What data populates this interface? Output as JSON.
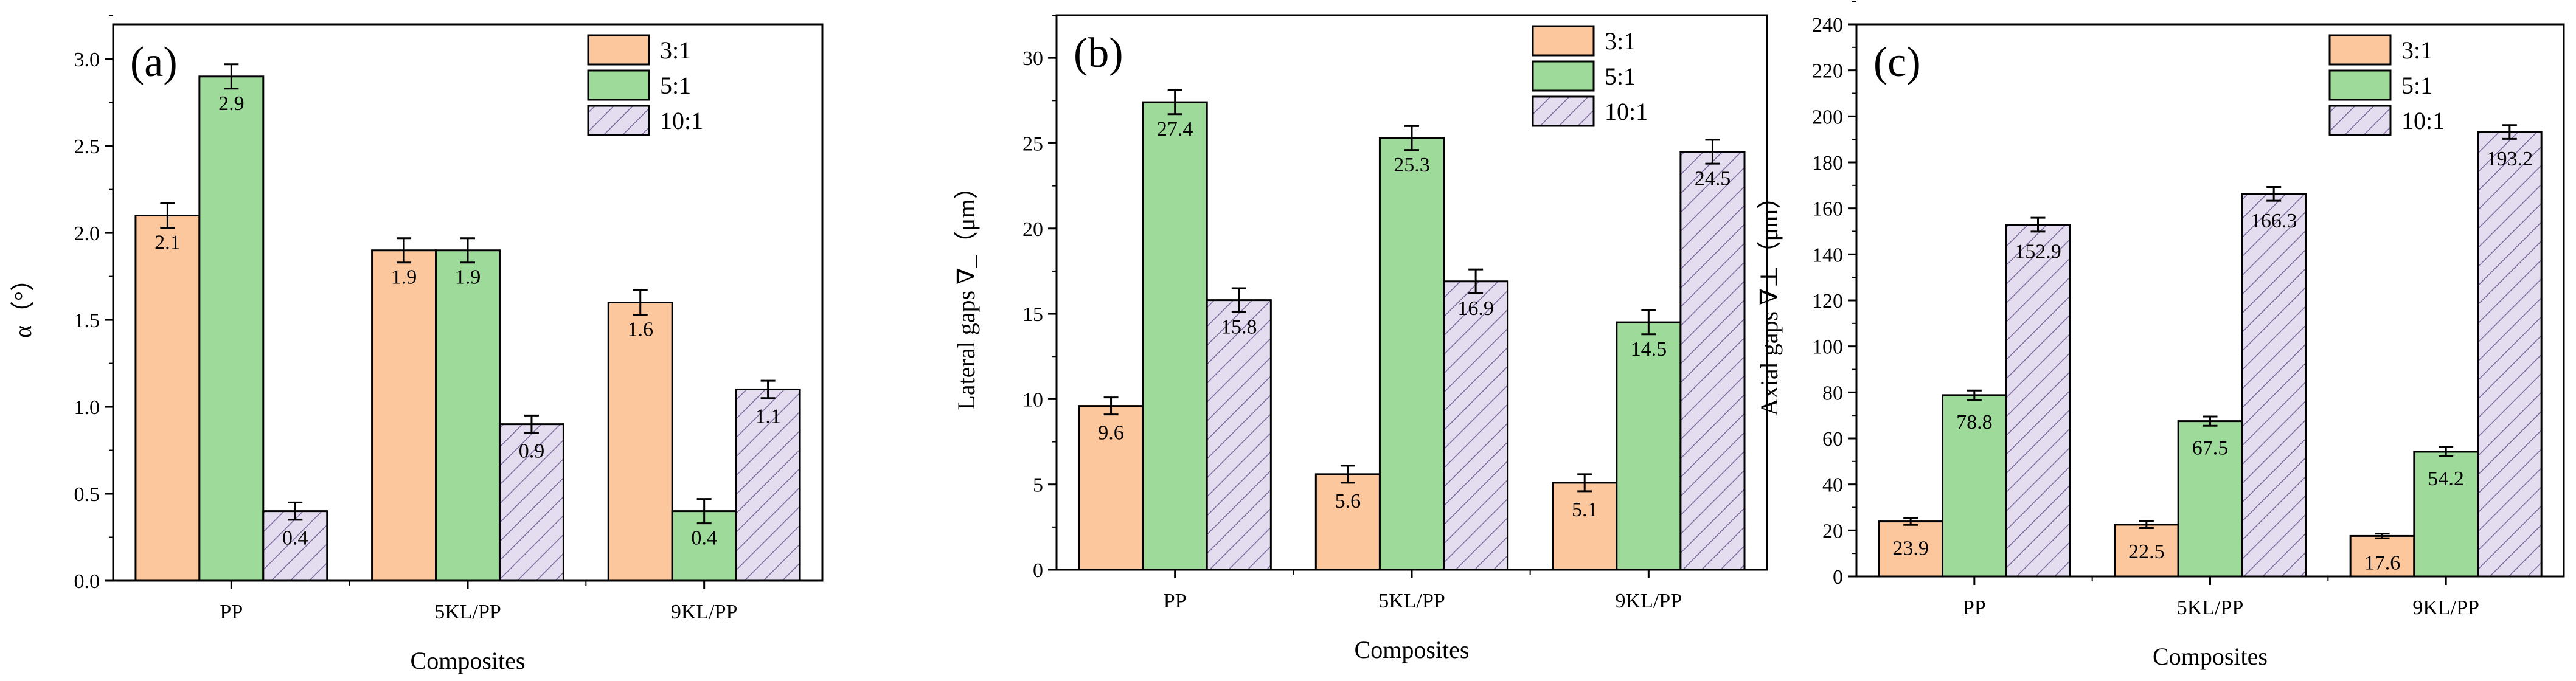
{
  "colors": {
    "s31_fill": "#fdc79d",
    "s51_fill": "#9edb9b",
    "s101_fill": "#e4dcef",
    "hatch": "#7c6a9c",
    "stroke": "#000000"
  },
  "chart_data": [
    {
      "type": "bar",
      "panel_label": "(a)",
      "xlabel": "Composites",
      "ylabel": "α（°）",
      "categories": [
        "PP",
        "5KL/PP",
        "9KL/PP"
      ],
      "ylim": [
        0,
        3.2
      ],
      "yticks": [
        "0.0",
        "0.5",
        "1.0",
        "1.5",
        "2.0",
        "2.5",
        "3.0"
      ],
      "ytick_values": [
        0,
        0.5,
        1.0,
        1.5,
        2.0,
        2.5,
        3.0
      ],
      "legend_position": "top-right",
      "series": [
        {
          "name": "3:1",
          "values": [
            2.1,
            1.9,
            1.6
          ],
          "errors": [
            0.07,
            0.07,
            0.07
          ],
          "labels": [
            "2.1",
            "1.9",
            "1.6"
          ]
        },
        {
          "name": "5:1",
          "values": [
            2.9,
            1.9,
            0.4
          ],
          "errors": [
            0.07,
            0.07,
            0.07
          ],
          "labels": [
            "2.9",
            "1.9",
            "0.4"
          ]
        },
        {
          "name": "10:1",
          "values": [
            0.4,
            0.9,
            1.1
          ],
          "errors": [
            0.05,
            0.05,
            0.05
          ],
          "labels": [
            "0.4",
            "0.9",
            "1.1"
          ]
        }
      ]
    },
    {
      "type": "bar",
      "panel_label": "(b)",
      "xlabel": "Composites",
      "ylabel": "Lateral gaps ∇_（μm）",
      "categories": [
        "PP",
        "5KL/PP",
        "9KL/PP"
      ],
      "ylim": [
        0,
        32.5
      ],
      "yticks": [
        "0",
        "5",
        "10",
        "15",
        "20",
        "25",
        "30"
      ],
      "ytick_values": [
        0,
        5,
        10,
        15,
        20,
        25,
        30
      ],
      "legend_position": "top-right",
      "series": [
        {
          "name": "3:1",
          "values": [
            9.6,
            5.6,
            5.1
          ],
          "errors": [
            0.5,
            0.5,
            0.5
          ],
          "labels": [
            "9.6",
            "5.6",
            "5.1"
          ]
        },
        {
          "name": "5:1",
          "values": [
            27.4,
            25.3,
            14.5
          ],
          "errors": [
            0.7,
            0.7,
            0.7
          ],
          "labels": [
            "27.4",
            "25.3",
            "14.5"
          ]
        },
        {
          "name": "10:1",
          "values": [
            15.8,
            16.9,
            24.5
          ],
          "errors": [
            0.7,
            0.7,
            0.7
          ],
          "labels": [
            "15.8",
            "16.9",
            "24.5"
          ]
        }
      ]
    },
    {
      "type": "bar",
      "panel_label": "(c)",
      "xlabel": "Composites",
      "ylabel": "Axial gaps ∇⊥（μm）",
      "categories": [
        "PP",
        "5KL/PP",
        "9KL/PP"
      ],
      "ylim": [
        0,
        240
      ],
      "yticks": [
        "0",
        "20",
        "40",
        "60",
        "80",
        "100",
        "120",
        "140",
        "160",
        "180",
        "200",
        "220",
        "240"
      ],
      "ytick_values": [
        0,
        20,
        40,
        60,
        80,
        100,
        120,
        140,
        160,
        180,
        200,
        220,
        240
      ],
      "legend_position": "top-right",
      "series": [
        {
          "name": "3:1",
          "values": [
            23.9,
            22.5,
            17.6
          ],
          "errors": [
            1.5,
            1.5,
            1.0
          ],
          "labels": [
            "23.9",
            "22.5",
            "17.6"
          ]
        },
        {
          "name": "5:1",
          "values": [
            78.8,
            67.5,
            54.2
          ],
          "errors": [
            2.0,
            2.0,
            2.0
          ],
          "labels": [
            "78.8",
            "67.5",
            "54.2"
          ]
        },
        {
          "name": "10:1",
          "values": [
            152.9,
            166.3,
            193.2
          ],
          "errors": [
            3.0,
            3.0,
            3.0
          ],
          "labels": [
            "152.9",
            "166.3",
            "193.2"
          ]
        }
      ]
    }
  ]
}
